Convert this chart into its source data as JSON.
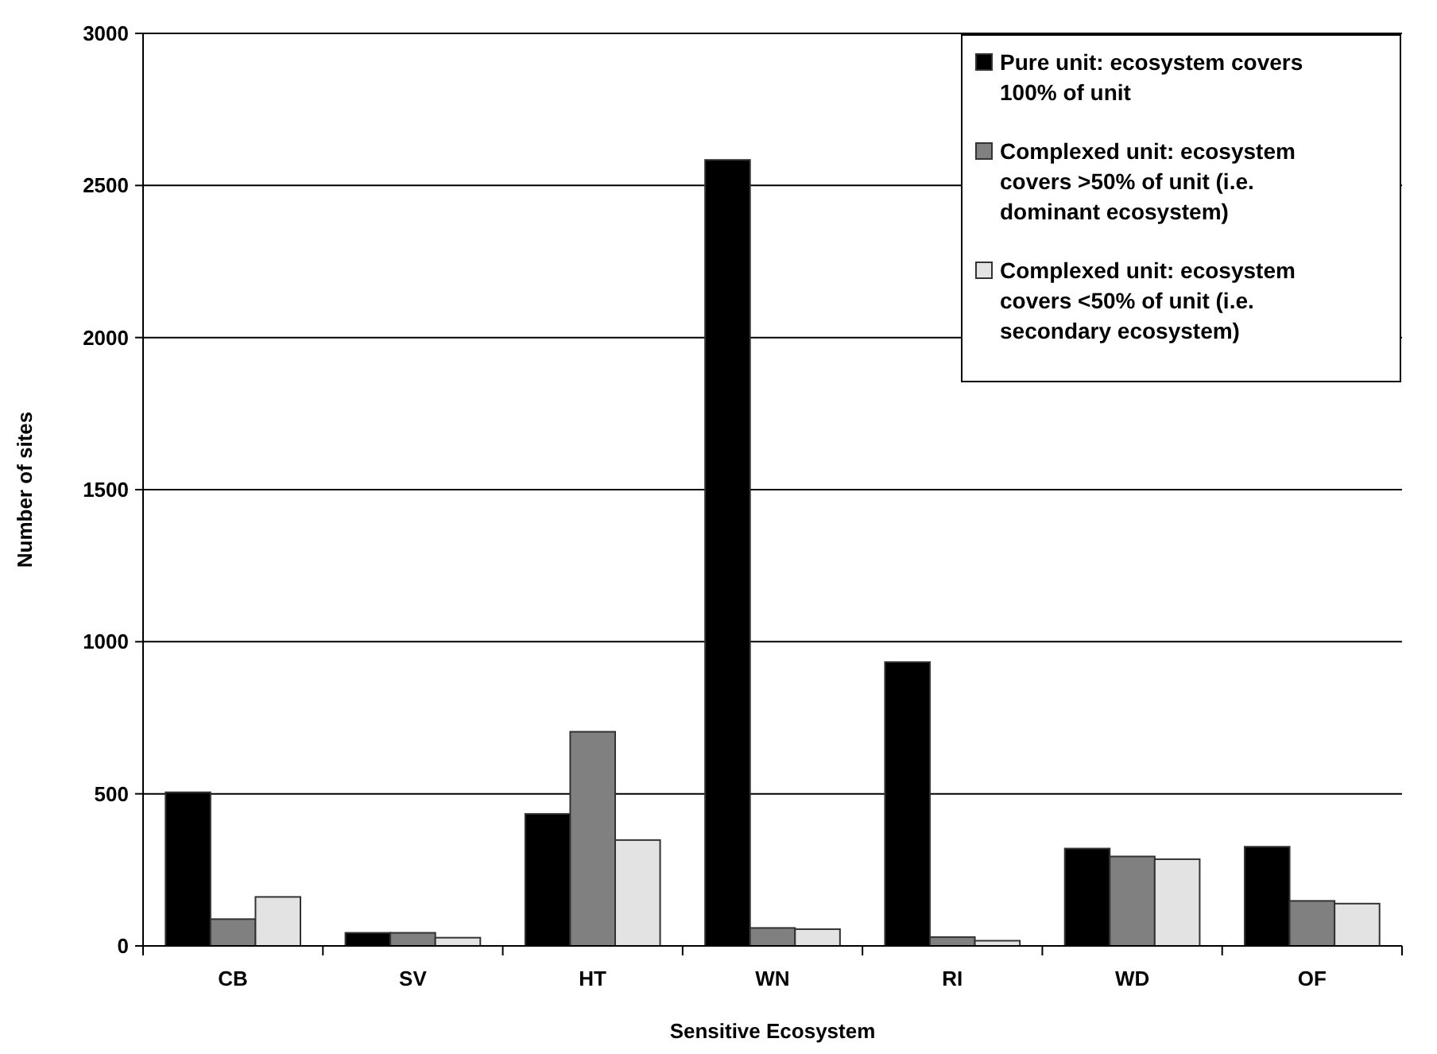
{
  "chart_data": {
    "type": "bar",
    "xlabel": "Sensitive Ecosystem",
    "ylabel": "Number of sites",
    "categories": [
      "CB",
      "SV",
      "HT",
      "WN",
      "RI",
      "WD",
      "OF"
    ],
    "series": [
      {
        "name": "Pure unit: ecosystem covers 100% of unit",
        "color": "#000000",
        "values": [
          505,
          43,
          434,
          2584,
          933,
          320,
          326
        ]
      },
      {
        "name": "Complexed unit: ecosystem covers >50% of unit (i.e. dominant ecosystem)",
        "color": "#808080",
        "values": [
          88,
          43,
          704,
          59,
          29,
          294,
          148
        ]
      },
      {
        "name": "Complexed unit: ecosystem covers <50% of unit (i.e. secondary ecosystem)",
        "color": "#e3e3e3",
        "values": [
          161,
          27,
          348,
          55,
          17,
          285,
          139
        ]
      }
    ],
    "ylim": [
      0,
      3000
    ],
    "yticks": [
      0,
      500,
      1000,
      1500,
      2000,
      2500,
      3000
    ],
    "grid": "y",
    "legend": "top right"
  }
}
